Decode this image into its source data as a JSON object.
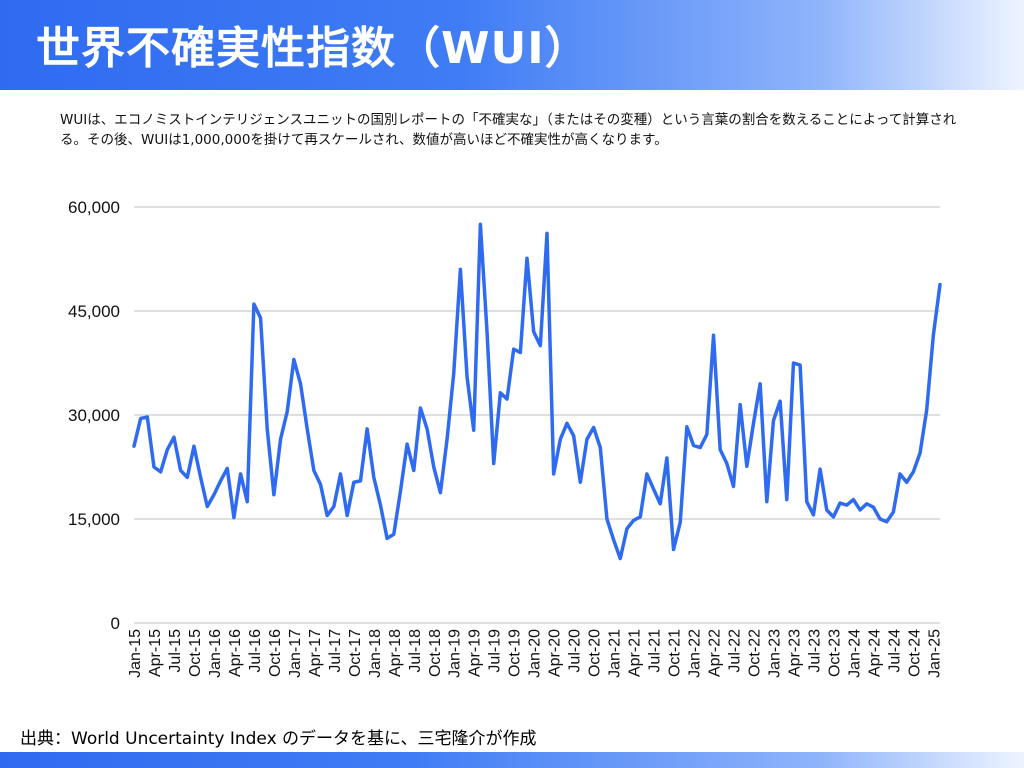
{
  "header": {
    "title": "世界不確実性指数（WUI）"
  },
  "description": "WUIは、エコノミストインテリジェンスユニットの国別レポートの「不確実な」（またはその変種）という言葉の割合を数えることによって計算される。その後、WUIは1,000,000を掛けて再スケールされ、数値が高いほど不確実性が高くなります。",
  "source": "出典：World Uncertainty Index のデータを基に、三宅隆介が作成",
  "colors": {
    "line": "#2f6bf0",
    "grid": "#bfbfbf",
    "header_blue": "#2f6bf0"
  },
  "chart_data": {
    "type": "line",
    "x_tick_labels": [
      "Jan-15",
      "Apr-15",
      "Jul-15",
      "Oct-15",
      "Jan-16",
      "Apr-16",
      "Jul-16",
      "Oct-16",
      "Jan-17",
      "Apr-17",
      "Jul-17",
      "Oct-17",
      "Jan-18",
      "Apr-18",
      "Jul-18",
      "Oct-18",
      "Jan-19",
      "Apr-19",
      "Jul-19",
      "Oct-19",
      "Jan-20",
      "Apr-20",
      "Jul-20",
      "Oct-20",
      "Jan-21",
      "Apr-21",
      "Jul-21",
      "Oct-21",
      "Jan-22",
      "Apr-22",
      "Jul-22",
      "Oct-22",
      "Jan-23",
      "Apr-23",
      "Jul-23",
      "Oct-23",
      "Jan-24",
      "Apr-24",
      "Jul-24",
      "Oct-24",
      "Jan-25"
    ],
    "y_tick_labels": [
      "0",
      "15,000",
      "30,000",
      "45,000",
      "60,000"
    ],
    "ylim": [
      0,
      60000
    ],
    "grid": true,
    "series": [
      {
        "values": [
          25500,
          29500,
          29700,
          22500,
          21800,
          25000,
          26800,
          22000,
          21000,
          25500,
          21000,
          16800,
          18500,
          20500,
          22300,
          15200,
          21500,
          17500,
          46000,
          44000,
          28000,
          18500,
          26500,
          30500,
          38000,
          34500,
          28000,
          22000,
          20000,
          15500,
          16800,
          21500,
          15500,
          20300,
          20500,
          28000,
          21000,
          17000,
          12200,
          12800,
          19000,
          25800,
          22000,
          31000,
          28000,
          22500,
          18800,
          26500,
          36000,
          51000,
          35500,
          27800,
          57500,
          42000,
          23000,
          33200,
          32300,
          39500,
          39000,
          52600,
          42000,
          40000,
          56200,
          21500,
          26500,
          28800,
          27000,
          20300,
          26500,
          28200,
          25300,
          15000,
          12000,
          9300,
          13600,
          14800,
          15300,
          21500,
          19300,
          17200,
          23800,
          10600,
          14500,
          28300,
          25600,
          25300,
          27200,
          41500,
          25000,
          23000,
          19700,
          31500,
          22600,
          28800,
          34500,
          17500,
          29200,
          32000,
          17800,
          37500,
          37200,
          17500,
          15600,
          22200,
          16300,
          15300,
          17300,
          17000,
          17800,
          16300,
          17200,
          16700,
          15000,
          14600,
          16000,
          21500,
          20300,
          21800,
          24500,
          30700,
          41500,
          48800
        ]
      }
    ]
  }
}
